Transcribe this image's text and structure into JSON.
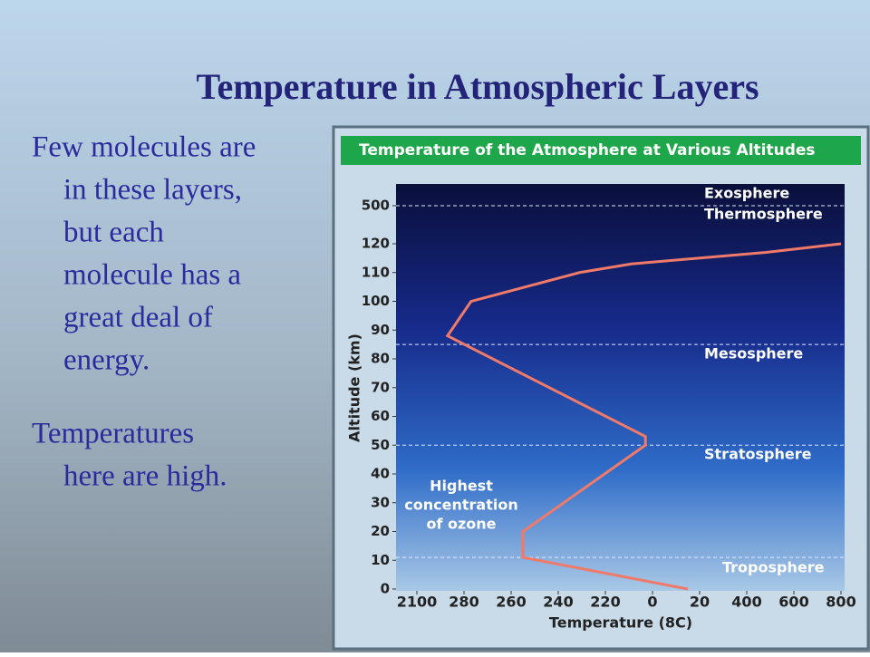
{
  "title": "Temperature in Atmospheric Layers",
  "paragraphs": [
    [
      "Few molecules are",
      "in these layers,",
      "but each",
      "molecule has a",
      "great deal of",
      "energy."
    ],
    [
      "Temperatures",
      "here are high."
    ]
  ],
  "chart_data": {
    "type": "line",
    "title": "Temperature of the Atmosphere at Various Altitudes",
    "xlabel": "Temperature (8C)",
    "ylabel": "Altitude (km)",
    "xlim": [
      -100,
      800
    ],
    "ylim": [
      0,
      500
    ],
    "xticks": [
      {
        "value": -100,
        "label": "2100"
      },
      {
        "value": -80,
        "label": "280"
      },
      {
        "value": -60,
        "label": "260"
      },
      {
        "value": -40,
        "label": "240"
      },
      {
        "value": -20,
        "label": "220"
      },
      0,
      20,
      400,
      600,
      800
    ],
    "yticks": [
      0,
      10,
      20,
      30,
      40,
      50,
      60,
      70,
      80,
      90,
      100,
      110,
      120,
      500
    ],
    "series": [
      {
        "name": "Temperature",
        "color": "#f07a6a",
        "x": [
          15,
          -55,
          -55,
          -3,
          -3,
          -87,
          -77,
          -31,
          -9,
          482,
          800
        ],
        "values": [
          0,
          11,
          20,
          50,
          53,
          88,
          100,
          110,
          113,
          117,
          120
        ]
      }
    ],
    "boundaries": [
      500,
      85,
      50,
      11
    ],
    "layers": [
      "Exosphere",
      "Thermosphere",
      "Mesosphere",
      "Stratosphere",
      "Troposphere"
    ],
    "annotation": [
      "Highest",
      "concentration",
      "of ozone"
    ]
  }
}
